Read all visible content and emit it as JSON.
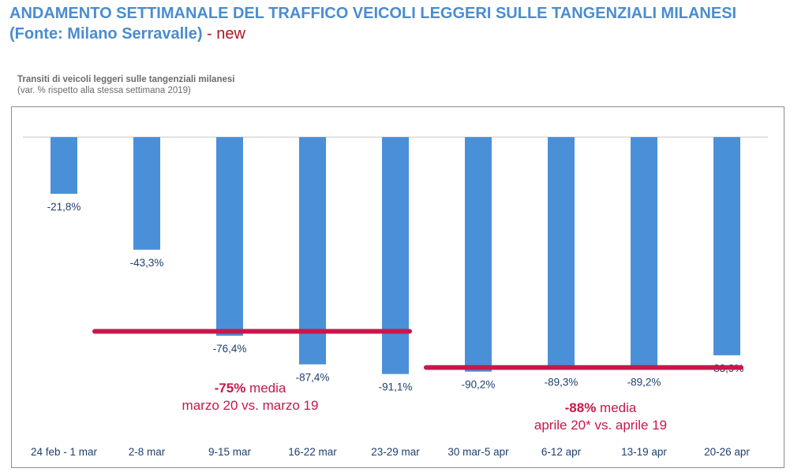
{
  "header": {
    "title_line1": "ANDAMENTO SETTIMANALE DEL TRAFFICO VEICOLI LEGGERI SULLE TANGENZIALI MILANESI",
    "title_line2": "(Fonte: Milano Serravalle)",
    "title_suffix": " - new"
  },
  "colors": {
    "title": "#4a8cd0",
    "bar": "#4a90d9",
    "label": "#1f3f6e",
    "average_line": "#c8174b",
    "new_tag": "#b0141e"
  },
  "chart_data": {
    "type": "bar",
    "title": "Transiti di veicoli leggeri sulle tangenziali milanesi",
    "subtitle": "(var. % rispetto alla stessa settimana 2019)",
    "xlabel": "",
    "ylabel": "",
    "ylim": [
      -100,
      0
    ],
    "grid": false,
    "legend": "none",
    "categories": [
      "24 feb - 1 mar",
      "2-8 mar",
      "9-15 mar",
      "16-22 mar",
      "23-29 mar",
      "30 mar-5 apr",
      "6-12 apr",
      "13-19 apr",
      "20-26 apr"
    ],
    "values": [
      -21.8,
      -43.3,
      -76.4,
      -87.4,
      -91.1,
      -90.2,
      -89.3,
      -89.2,
      -83.9
    ],
    "data_labels": [
      "-21,8%",
      "-43,3%",
      "-76,4%",
      "-87,4%",
      "-91,1%",
      "-90,2%",
      "-89,3%",
      "-89,2%",
      "-83,9%"
    ],
    "averages": [
      {
        "value": -75,
        "from_category": 1,
        "to_category": 4,
        "bold_label": "-75%",
        "label_rest": " media",
        "label_line2": "marzo 20 vs. marzo 19"
      },
      {
        "value": -88,
        "from_category": 5,
        "to_category": 8,
        "bold_label": "-88%",
        "label_rest": " media",
        "label_line2": "aprile 20* vs. aprile 19"
      }
    ]
  }
}
